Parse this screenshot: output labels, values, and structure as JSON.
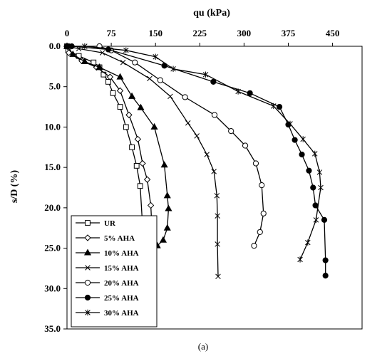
{
  "chart_data": {
    "type": "line",
    "xlabel": "qu (kPa)",
    "ylabel": "s/D (%)",
    "caption": "(a)",
    "x_ticks": [
      "0",
      "75",
      "150",
      "225",
      "300",
      "375",
      "450"
    ],
    "y_ticks": [
      "0.0",
      "5.0",
      "10.0",
      "15.0",
      "20.0",
      "25.0",
      "30.0",
      "35.0"
    ],
    "xlim": [
      0,
      500
    ],
    "ylim": [
      0,
      35
    ],
    "x_axis_position": "top",
    "y_axis_inverted": true,
    "grid": false,
    "legend_position": "bottom-left",
    "series": [
      {
        "name": "UR",
        "marker": "square-open",
        "x": [
          0,
          2,
          20,
          45,
          55,
          62,
          70,
          78,
          90,
          100,
          110,
          118,
          124,
          128
        ],
        "y": [
          0,
          0.5,
          1.2,
          2.0,
          2.6,
          3.5,
          4.4,
          5.8,
          7.5,
          10.0,
          12.5,
          14.8,
          17.3,
          22.2
        ]
      },
      {
        "name": "5% AHA",
        "marker": "diamond-open",
        "x": [
          0,
          3,
          25,
          50,
          73,
          90,
          105,
          120,
          128,
          136,
          142,
          145,
          146,
          146
        ],
        "y": [
          0,
          0.8,
          1.8,
          2.6,
          3.8,
          5.5,
          8.5,
          11.5,
          14.5,
          16.5,
          19.7,
          24.3,
          25.5,
          27.2
        ]
      },
      {
        "name": "10% AHA",
        "marker": "triangle-filled",
        "x": [
          0,
          10,
          30,
          55,
          90,
          110,
          125,
          148,
          165,
          170,
          172,
          170,
          163,
          153
        ],
        "y": [
          0,
          1.0,
          1.9,
          2.6,
          3.8,
          6.2,
          7.6,
          10.0,
          14.7,
          18.5,
          20.1,
          22.5,
          24.0,
          24.7
        ]
      },
      {
        "name": "15% AHA",
        "marker": "x",
        "x": [
          0,
          20,
          60,
          95,
          140,
          175,
          205,
          220,
          237,
          249,
          254,
          255,
          255,
          256
        ],
        "y": [
          0,
          0.3,
          0.8,
          2.0,
          4.0,
          6.2,
          9.5,
          11.1,
          13.4,
          15.5,
          18.5,
          21.0,
          24.5,
          28.5
        ]
      },
      {
        "name": "20% AHA",
        "marker": "circle-open",
        "x": [
          0,
          55,
          75,
          115,
          158,
          200,
          250,
          278,
          302,
          320,
          330,
          333,
          327,
          317
        ],
        "y": [
          0,
          0,
          0.5,
          2.0,
          4.2,
          6.3,
          8.5,
          10.5,
          12.3,
          14.5,
          17.2,
          20.7,
          23.0,
          24.7
        ]
      },
      {
        "name": "25% AHA",
        "marker": "circle-filled",
        "x": [
          0,
          2,
          8,
          70,
          165,
          248,
          310,
          360,
          375,
          386,
          398,
          410,
          417,
          421,
          436,
          438,
          438
        ],
        "y": [
          0,
          0,
          0,
          0.4,
          2.4,
          4.4,
          5.8,
          7.5,
          9.7,
          11.6,
          13.4,
          15.4,
          17.5,
          19.7,
          21.5,
          26.5,
          28.4
        ]
      },
      {
        "name": "30% AHA",
        "marker": "asterisk",
        "x": [
          0,
          30,
          100,
          150,
          180,
          235,
          290,
          350,
          378,
          400,
          420,
          428,
          430,
          422,
          408,
          395
        ],
        "y": [
          0,
          0,
          0.5,
          1.3,
          2.8,
          3.5,
          5.6,
          7.4,
          9.6,
          11.5,
          13.3,
          15.6,
          17.5,
          21.5,
          24.3,
          26.4
        ]
      }
    ]
  }
}
